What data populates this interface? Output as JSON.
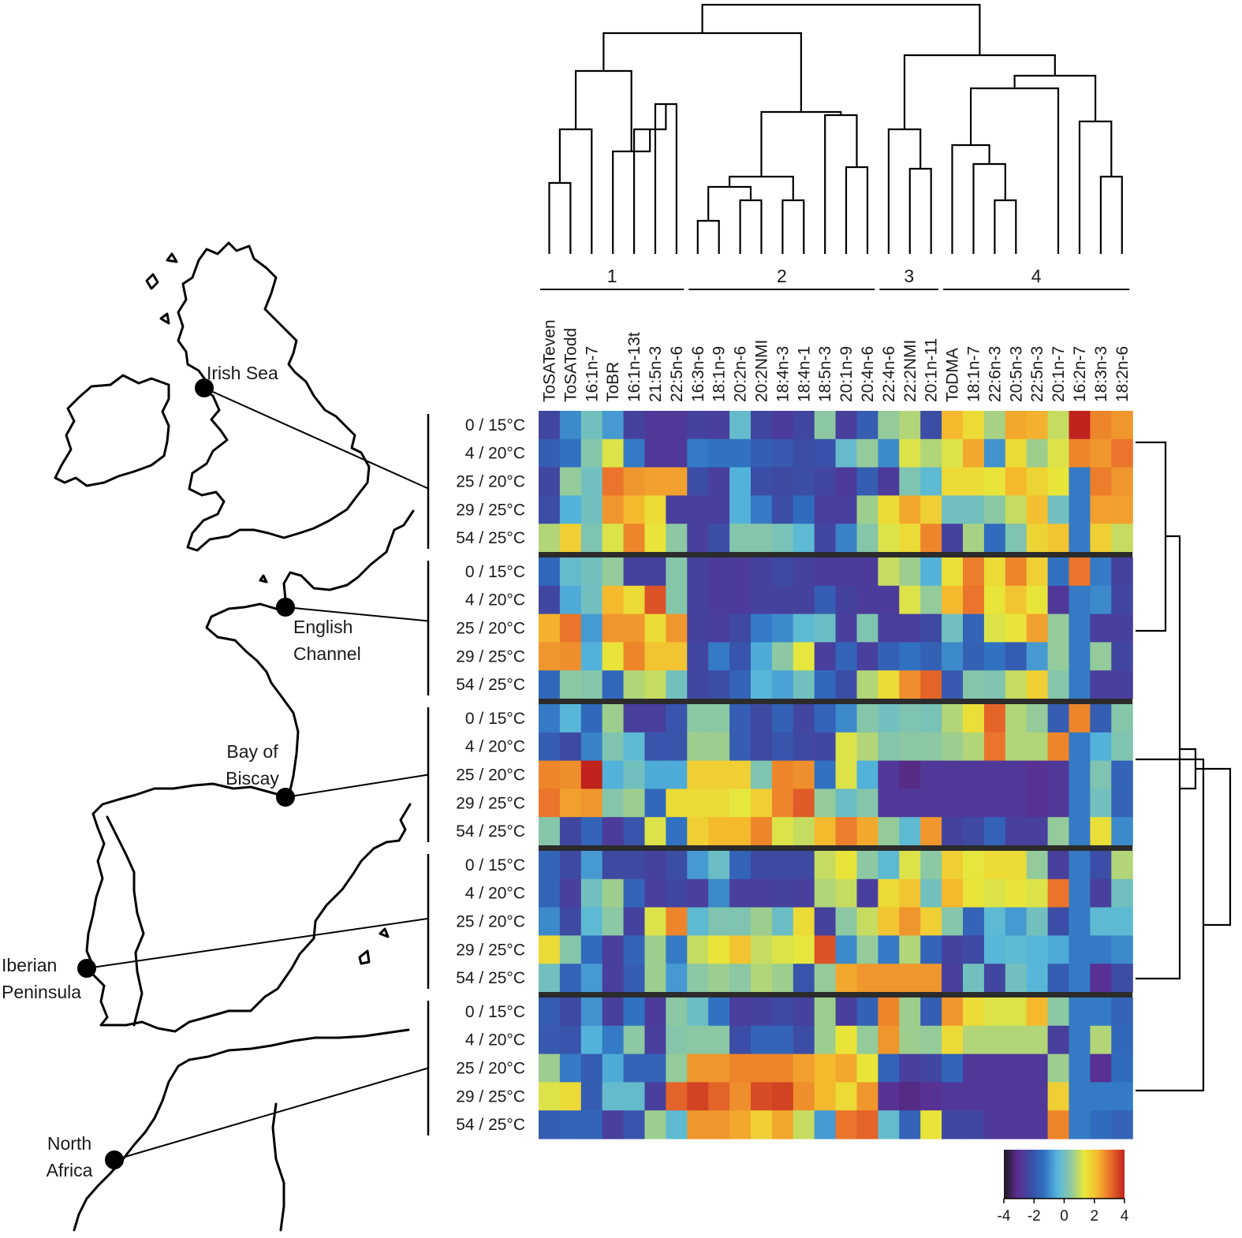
{
  "chart_data": {
    "type": "heatmap",
    "title": "",
    "xlabel": "",
    "ylabel": "",
    "columns": [
      "ToSATeven",
      "ToSATodd",
      "16:1n-7",
      "ToBR",
      "16:1n-13t",
      "21:5n-3",
      "22:5n-6",
      "16:3n-6",
      "18:1n-9",
      "20:2n-6",
      "20:2NMI",
      "18:4n-3",
      "18:4n-1",
      "18:5n-3",
      "20:1n-9",
      "20:4n-6",
      "22:4n-6",
      "22:2NMI",
      "20:1n-11",
      "ToDMA",
      "18:1n-7",
      "22:6n-3",
      "20:5n-3",
      "22:5n-3",
      "20:1n-7",
      "16:2n-7",
      "18:3n-3",
      "18:2n-6"
    ],
    "column_clusters": [
      {
        "label": "1",
        "members": [
          "ToSATeven",
          "ToSATodd",
          "16:1n-7",
          "ToBR",
          "16:1n-13t",
          "21:5n-3",
          "22:5n-6"
        ]
      },
      {
        "label": "2",
        "members": [
          "16:3n-6",
          "18:1n-9",
          "20:2n-6",
          "20:2NMI",
          "18:4n-3",
          "18:4n-1",
          "18:5n-3",
          "20:1n-9",
          "20:4n-6"
        ]
      },
      {
        "label": "3",
        "members": [
          "22:4n-6",
          "22:2NMI",
          "20:1n-11"
        ]
      },
      {
        "label": "4",
        "members": [
          "ToDMA",
          "18:1n-7",
          "22:6n-3",
          "20:5n-3",
          "22:5n-3",
          "20:1n-7",
          "16:2n-7",
          "18:3n-3",
          "18:2n-6"
        ]
      }
    ],
    "row_labels": [
      "0 / 15°C",
      "4 / 20°C",
      "25 / 20°C",
      "29 / 25°C",
      "54 / 25°C"
    ],
    "sites": [
      {
        "name": "Irish Sea",
        "label_lines": [
          "Irish Sea"
        ]
      },
      {
        "name": "English Channel",
        "label_lines": [
          "English",
          "Channel"
        ]
      },
      {
        "name": "Bay of Biscay",
        "label_lines": [
          "Bay of",
          "Biscay"
        ]
      },
      {
        "name": "Iberian Peninsula",
        "label_lines": [
          "Iberian",
          "Peninsula"
        ]
      },
      {
        "name": "North Africa",
        "label_lines": [
          "North",
          "Africa"
        ]
      }
    ],
    "colorbar": {
      "min": -4,
      "max": 4,
      "ticks": [
        "-4",
        "-2",
        "0",
        "2",
        "4"
      ],
      "colors": [
        "#1a1a1a",
        "#5b2d91",
        "#3b4ca4",
        "#2f6fc0",
        "#55b6dc",
        "#8ec9a0",
        "#e8e83a",
        "#f5b82e",
        "#e86a2a",
        "#c0221e"
      ]
    },
    "values": [
      [
        -2.4,
        -1.0,
        0.0,
        -0.8,
        -2.5,
        -2.8,
        -2.8,
        -2.5,
        -2.6,
        -0.2,
        -2.4,
        -2.7,
        -2.4,
        0.4,
        -2.6,
        -1.8,
        0.5,
        0.8,
        -2.2,
        2.2,
        1.6,
        0.7,
        2.4,
        2.3,
        1.0,
        4.0,
        2.8,
        2.6
      ],
      [
        -1.8,
        -1.3,
        0.3,
        1.2,
        -1.2,
        -2.8,
        -2.8,
        -1.2,
        -1.3,
        -1.3,
        -1.8,
        -1.9,
        -2.2,
        -2.1,
        -0.2,
        0.5,
        -1.0,
        1.2,
        0.8,
        1.2,
        2.4,
        -0.9,
        1.6,
        0.6,
        1.2,
        2.8,
        2.6,
        3.0
      ],
      [
        -2.4,
        0.5,
        0.0,
        3.0,
        2.6,
        2.5,
        2.5,
        -2.2,
        -2.6,
        -0.5,
        -2.2,
        -2.3,
        -2.2,
        -2.4,
        -2.7,
        -1.8,
        -2.7,
        0.2,
        -0.3,
        1.6,
        1.6,
        1.4,
        2.2,
        1.7,
        1.4,
        -1.2,
        2.9,
        2.6
      ],
      [
        -2.2,
        -0.5,
        0.0,
        2.6,
        2.2,
        1.6,
        -2.6,
        -2.6,
        -2.6,
        -0.5,
        -1.2,
        -2.2,
        -1.4,
        -2.6,
        -2.6,
        0.6,
        1.6,
        2.4,
        1.8,
        0.0,
        0.0,
        0.4,
        1.0,
        2.1,
        0.0,
        -1.2,
        2.5,
        2.5
      ],
      [
        0.8,
        1.8,
        0.2,
        1.2,
        2.8,
        1.4,
        0.4,
        -2.6,
        -2.2,
        0.3,
        0.3,
        0.1,
        -0.3,
        -2.4,
        -1.1,
        0.3,
        1.2,
        1.6,
        2.8,
        -2.5,
        0.7,
        -1.4,
        0.2,
        1.7,
        2.0,
        -1.2,
        1.8,
        1.0
      ],
      [
        -1.5,
        -0.2,
        0.0,
        0.5,
        -2.5,
        -2.5,
        0.3,
        -2.5,
        -2.7,
        -2.7,
        -2.5,
        -2.3,
        -2.5,
        -2.7,
        -2.7,
        -2.7,
        1.0,
        0.6,
        -0.5,
        1.5,
        2.9,
        1.6,
        2.8,
        1.8,
        -1.3,
        3.0,
        -1.2,
        -2.5
      ],
      [
        -2.4,
        -0.6,
        0.0,
        2.2,
        1.6,
        3.4,
        0.3,
        -2.5,
        -2.7,
        -2.7,
        -2.5,
        -2.5,
        -2.5,
        -1.8,
        -2.5,
        -2.7,
        -2.7,
        1.2,
        0.5,
        2.2,
        3.0,
        1.4,
        2.0,
        1.4,
        -2.8,
        -1.2,
        -1.0,
        -2.4
      ],
      [
        2.3,
        3.0,
        -0.8,
        2.6,
        2.6,
        1.6,
        2.6,
        -2.5,
        -2.6,
        -2.3,
        -1.2,
        -1.0,
        -0.3,
        -0.1,
        -2.6,
        0.2,
        -2.6,
        -2.6,
        -2.3,
        0.0,
        -1.6,
        1.2,
        1.4,
        2.5,
        0.5,
        -1.2,
        -2.6,
        -2.6
      ],
      [
        2.6,
        2.7,
        -0.5,
        1.4,
        2.8,
        2.0,
        2.0,
        -2.4,
        -1.2,
        -2.0,
        -0.6,
        0.4,
        1.3,
        -2.6,
        -1.6,
        -2.6,
        -1.7,
        -1.3,
        -1.7,
        -1.0,
        -1.7,
        -1.3,
        -1.8,
        -0.8,
        0.5,
        -1.2,
        0.5,
        -2.4
      ],
      [
        -1.5,
        0.4,
        0.3,
        -1.5,
        0.8,
        1.0,
        0.0,
        -2.4,
        -2.2,
        -1.6,
        -0.4,
        -0.7,
        0.0,
        -1.5,
        -2.2,
        0.8,
        1.6,
        2.7,
        3.2,
        -1.9,
        0.3,
        0.2,
        1.0,
        1.8,
        0.3,
        -1.2,
        -2.6,
        -2.6
      ],
      [
        -1.2,
        -0.4,
        -1.5,
        0.6,
        -2.6,
        -2.6,
        -2.0,
        0.4,
        0.4,
        -1.8,
        -2.3,
        -1.7,
        -2.4,
        -1.6,
        -1.0,
        0.3,
        0.0,
        0.2,
        0.1,
        0.8,
        1.5,
        3.2,
        0.8,
        0.5,
        -1.8,
        2.8,
        -1.8,
        0.3
      ],
      [
        -1.8,
        -2.3,
        -1.1,
        0.2,
        -0.3,
        -2.0,
        -2.0,
        0.6,
        0.6,
        -1.8,
        -2.3,
        -2.0,
        -2.3,
        -2.4,
        1.2,
        0.8,
        0.3,
        0.4,
        0.4,
        0.6,
        0.8,
        3.0,
        0.8,
        0.8,
        2.8,
        -1.2,
        -0.5,
        0.2
      ],
      [
        2.8,
        2.7,
        4.2,
        -0.5,
        0.0,
        -0.6,
        -0.6,
        1.8,
        1.8,
        1.8,
        0.2,
        2.8,
        2.7,
        -1.3,
        1.2,
        -0.5,
        -2.8,
        -3.2,
        -2.8,
        -2.8,
        -2.8,
        -2.8,
        -2.8,
        -3.0,
        -2.8,
        -1.2,
        0.2,
        -1.6
      ],
      [
        3.0,
        2.5,
        2.6,
        0.3,
        0.6,
        -1.5,
        1.6,
        1.6,
        1.6,
        1.3,
        1.8,
        2.8,
        3.3,
        0.5,
        -0.1,
        0.3,
        -2.8,
        -2.8,
        -2.8,
        -2.8,
        -2.8,
        -2.8,
        -2.8,
        -3.0,
        -2.8,
        -1.2,
        0.0,
        -1.6
      ],
      [
        0.3,
        -2.4,
        -1.6,
        -2.7,
        -2.0,
        1.2,
        -1.3,
        1.8,
        2.2,
        2.2,
        2.8,
        1.2,
        1.0,
        2.2,
        2.9,
        2.4,
        0.5,
        -0.3,
        2.6,
        -2.5,
        -2.3,
        -1.6,
        -2.6,
        -2.6,
        0.5,
        -1.2,
        1.5,
        -1.0
      ],
      [
        -1.6,
        -2.3,
        -0.8,
        -2.3,
        -2.3,
        -2.5,
        -2.2,
        -0.8,
        -0.1,
        -1.6,
        -2.3,
        -2.3,
        -2.3,
        1.0,
        1.4,
        0.4,
        -0.3,
        1.2,
        0.4,
        1.8,
        1.3,
        1.6,
        1.6,
        0.5,
        -2.6,
        -1.2,
        -2.2,
        0.8
      ],
      [
        -1.6,
        -2.6,
        0.0,
        0.6,
        -1.6,
        -2.6,
        -2.4,
        -2.6,
        -1.0,
        -2.6,
        -2.6,
        -2.5,
        -2.6,
        0.8,
        1.0,
        -2.6,
        1.6,
        2.0,
        0.0,
        2.2,
        1.4,
        1.2,
        1.4,
        1.2,
        3.0,
        -1.2,
        -2.6,
        0.0
      ],
      [
        -1.0,
        -2.3,
        -0.3,
        0.4,
        -2.5,
        1.2,
        2.8,
        -0.3,
        0.2,
        0.2,
        0.6,
        -0.1,
        1.6,
        -2.5,
        0.4,
        1.0,
        2.0,
        2.6,
        1.8,
        0.3,
        -1.6,
        -0.3,
        -0.8,
        0.0,
        -2.2,
        -1.2,
        -0.3,
        -0.3
      ],
      [
        1.6,
        0.3,
        -1.4,
        -2.6,
        -1.6,
        0.6,
        -1.2,
        1.0,
        1.4,
        2.0,
        1.0,
        1.2,
        1.3,
        3.4,
        -1.0,
        0.5,
        -1.2,
        0.8,
        -1.6,
        -2.5,
        -2.3,
        -0.4,
        -0.3,
        -0.4,
        -0.6,
        -1.2,
        -1.2,
        -1.0
      ],
      [
        0.0,
        -1.6,
        -0.8,
        -2.6,
        -1.8,
        0.6,
        -0.8,
        0.4,
        0.6,
        0.4,
        0.8,
        0.6,
        -2.0,
        0.5,
        2.4,
        2.6,
        2.6,
        2.6,
        2.6,
        -2.6,
        0.0,
        -2.4,
        0.0,
        -0.4,
        -1.8,
        -1.2,
        -3.0,
        -2.2
      ],
      [
        -1.8,
        -2.3,
        -0.9,
        -2.6,
        -1.3,
        -2.7,
        0.4,
        -0.1,
        -1.3,
        -2.6,
        -2.5,
        -2.3,
        -2.5,
        0.6,
        -2.6,
        -1.7,
        2.8,
        0.6,
        -1.8,
        2.6,
        1.6,
        1.2,
        1.2,
        2.2,
        0.4,
        -1.2,
        -1.2,
        -1.6
      ],
      [
        -1.9,
        -2.0,
        -0.5,
        -1.2,
        0.4,
        -2.6,
        0.3,
        0.4,
        0.4,
        -2.2,
        -1.6,
        -1.6,
        -2.2,
        0.6,
        1.4,
        0.5,
        2.6,
        0.6,
        0.5,
        1.6,
        0.8,
        0.8,
        0.8,
        0.8,
        -2.6,
        -1.2,
        0.8,
        -1.5
      ],
      [
        0.6,
        -1.2,
        -1.8,
        -0.6,
        -1.6,
        -1.6,
        0.5,
        2.6,
        2.6,
        2.8,
        2.8,
        2.8,
        2.5,
        2.2,
        2.4,
        1.4,
        -1.6,
        -2.6,
        -2.4,
        -1.6,
        -2.8,
        -2.8,
        -2.8,
        -2.8,
        0.6,
        -1.2,
        -3.0,
        -1.4
      ],
      [
        1.2,
        1.6,
        -1.8,
        -0.2,
        -0.2,
        -2.6,
        3.2,
        3.6,
        3.2,
        2.7,
        3.5,
        3.6,
        2.7,
        2.2,
        1.6,
        2.6,
        -3.0,
        -3.2,
        -3.0,
        -2.8,
        -2.8,
        -2.8,
        -2.8,
        -2.8,
        1.8,
        -1.2,
        -1.2,
        -1.2
      ],
      [
        -1.8,
        -1.6,
        -1.6,
        -2.6,
        -2.0,
        0.6,
        -0.3,
        2.6,
        2.6,
        2.4,
        1.8,
        2.4,
        1.0,
        -0.8,
        3.0,
        3.2,
        -0.2,
        -1.6,
        1.4,
        -2.4,
        -2.4,
        -2.8,
        -2.8,
        -2.8,
        2.8,
        -1.2,
        -1.4,
        -1.6
      ]
    ]
  }
}
